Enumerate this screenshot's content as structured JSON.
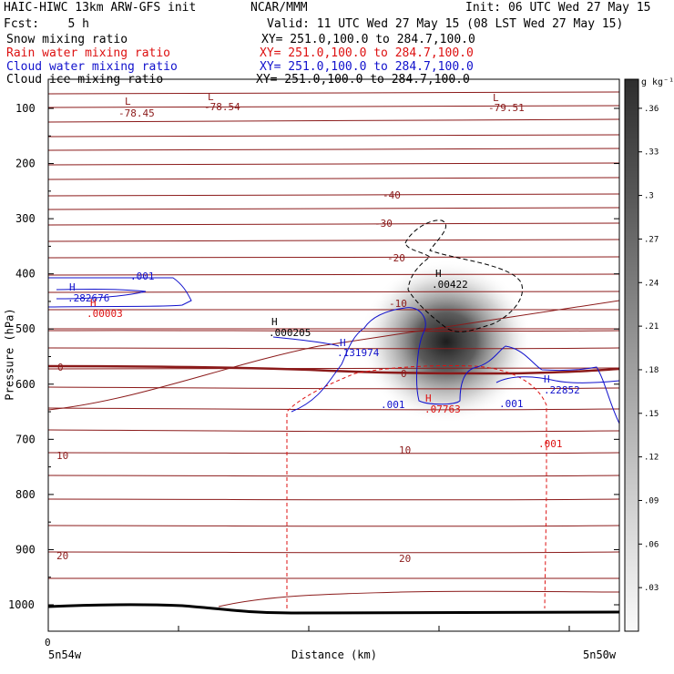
{
  "header": {
    "model": "HAIC-HIWC 13km ARW-GFS init",
    "center": "NCAR/MMM",
    "init": "Init: 06 UTC Wed 27 May 15",
    "fcst": "Fcst:    5 h",
    "valid": "Valid: 11 UTC Wed 27 May 15 (08 LST Wed 27 May 15)",
    "xy": "XY= 251.0,100.0 to 284.7,100.0"
  },
  "fields": [
    {
      "name": "Snow mixing ratio",
      "color": "#000000"
    },
    {
      "name": "Rain water mixing ratio",
      "color": "#dd1111"
    },
    {
      "name": "Cloud water mixing ratio",
      "color": "#1111cc"
    },
    {
      "name": "Cloud ice mixing ratio",
      "color": "#000000"
    }
  ],
  "chart_data": {
    "type": "contour-cross-section",
    "ylabel": "Pressure (hPa)",
    "xlabel": "Distance (km)",
    "y_ticks": [
      100,
      200,
      300,
      400,
      500,
      600,
      700,
      800,
      900,
      1000
    ],
    "x_ticks": [
      0
    ],
    "x_start_label": "5n54w",
    "x_end_label": "5n50w",
    "colorbar_unit": "g kg⁻¹",
    "colorbar_ticks": [
      ".36",
      ".33",
      ".3",
      ".27",
      ".24",
      ".21",
      ".18",
      ".15",
      ".12",
      ".09",
      ".06",
      ".03"
    ],
    "temperature_contours": [
      {
        "value": "-40",
        "p": 213
      },
      {
        "value": "-30",
        "p": 307
      },
      {
        "value": "-20",
        "p": 343
      },
      {
        "value": "-10",
        "p": 485
      },
      {
        "value": "0",
        "p": 584
      },
      {
        "value": "10",
        "p": 727
      },
      {
        "value": "10",
        "p": 716
      },
      {
        "value": "20",
        "p": 910
      },
      {
        "value": "20",
        "p": 900
      }
    ],
    "annotations": [
      {
        "text": "L",
        "sub": "-78.45",
        "color": "#8b1a1a"
      },
      {
        "text": "L",
        "sub": "-78.54",
        "color": "#8b1a1a"
      },
      {
        "text": "L",
        "sub": "-79.51",
        "color": "#8b1a1a"
      },
      {
        "text": "H",
        "sub": ".00422",
        "color": "#000000"
      },
      {
        "text": "H",
        "sub": ".000205",
        "color": "#000000"
      },
      {
        "text": "H",
        "sub": ".282676",
        "color": "#1111cc"
      },
      {
        "text": "H",
        "sub": ".00003",
        "color": "#dd1111"
      },
      {
        "text": "H",
        "sub": ".131974",
        "color": "#1111cc"
      },
      {
        "text": "H",
        "sub": ".07763",
        "color": "#dd1111"
      },
      {
        "text": "H",
        "sub": ".22852",
        "color": "#1111cc"
      }
    ],
    "contour_labels": [
      {
        "text": ".001",
        "color": "#1111cc"
      },
      {
        "text": ".001",
        "color": "#1111cc"
      },
      {
        "text": ".001",
        "color": "#1111cc"
      },
      {
        "text": ".001",
        "color": "#dd1111"
      }
    ],
    "snow_max": 0.36
  }
}
